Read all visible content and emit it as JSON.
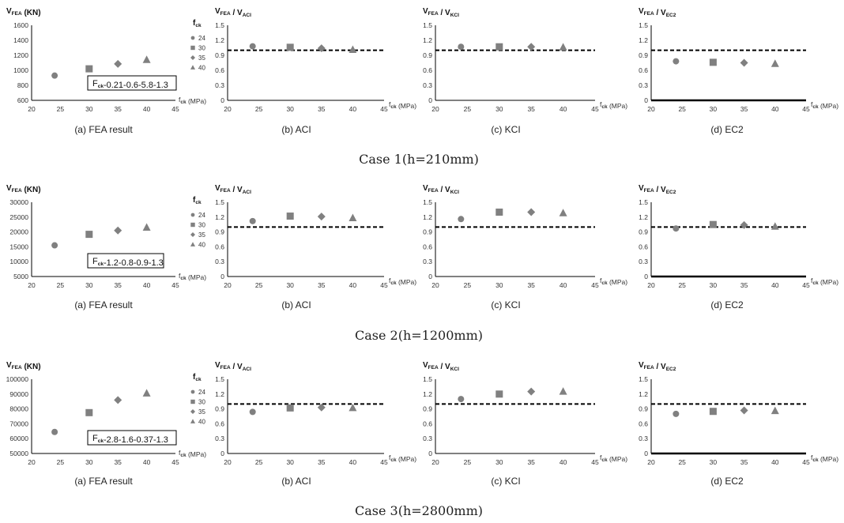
{
  "colors": {
    "marker": "#808080",
    "axis": "#000000",
    "reference": "#000000"
  },
  "legend": {
    "title_main": "f",
    "title_sub": "ck",
    "entries": [
      "24",
      "30",
      "35",
      "40"
    ]
  },
  "chart_data": [
    {
      "type": "scatter",
      "case": 1,
      "panel": "fea",
      "caption": "(a) FEA result",
      "ylabel_main": "V",
      "ylabel_sub": "FEA",
      "ylabel_rest": " (KN)",
      "xlabel_main": "f",
      "xlabel_sub": "ck",
      "xlabel_rest": " (MPa)",
      "xlim": [
        20,
        45
      ],
      "xticks": [
        "20",
        "25",
        "30",
        "35",
        "40",
        "45"
      ],
      "ylim": [
        600,
        1600
      ],
      "yticks": [
        "600",
        "800",
        "1000",
        "1200",
        "1400",
        "1600"
      ],
      "x": [
        24,
        30,
        35,
        40
      ],
      "y": [
        930,
        1020,
        1085,
        1140
      ],
      "legend_title": "f",
      "legend_title_sub": "ck",
      "annotation": {
        "prefix": "F",
        "sub": "ck",
        "text": "-0.21-0.6-5.8-1.3"
      }
    },
    {
      "type": "scatter",
      "case": 1,
      "panel": "ratio",
      "caption": "(b) ACI",
      "ylabel_main": "V",
      "ylabel_sub": "FEA",
      "ylabel_mid": " / V",
      "ylabel_sub2": "ACI",
      "xlabel_main": "f",
      "xlabel_sub": "ck",
      "xlabel_rest": " (MPa)",
      "xlim": [
        20,
        45
      ],
      "xticks": [
        "20",
        "25",
        "30",
        "35",
        "40",
        "45"
      ],
      "ylim": [
        0,
        1.5
      ],
      "yticks": [
        "0",
        "0.3",
        "0.6",
        "0.9",
        "1.2",
        "1.5"
      ],
      "x": [
        24,
        30,
        35,
        40
      ],
      "y": [
        1.08,
        1.06,
        1.04,
        1.01
      ],
      "reference": 1.0
    },
    {
      "type": "scatter",
      "case": 1,
      "panel": "ratio",
      "caption": "(c) KCI",
      "ylabel_main": "V",
      "ylabel_sub": "FEA",
      "ylabel_mid": " / V",
      "ylabel_sub2": "KCI",
      "xlabel_main": "f",
      "xlabel_sub": "ck",
      "xlabel_rest": " (MPa)",
      "xlim": [
        20,
        45
      ],
      "xticks": [
        "20",
        "25",
        "30",
        "35",
        "40",
        "45"
      ],
      "ylim": [
        0,
        1.5
      ],
      "yticks": [
        "0",
        "0.3",
        "0.6",
        "0.9",
        "1.2",
        "1.5"
      ],
      "x": [
        24,
        30,
        35,
        40
      ],
      "y": [
        1.07,
        1.07,
        1.07,
        1.06
      ],
      "reference": 1.0
    },
    {
      "type": "scatter",
      "case": 1,
      "panel": "ratio",
      "caption": "(d) EC2",
      "ylabel_main": "V",
      "ylabel_sub": "FEA",
      "ylabel_mid": " / V",
      "ylabel_sub2": "EC2",
      "xlabel_main": "f",
      "xlabel_sub": "ck",
      "xlabel_rest": " (MPa)",
      "xlim": [
        20,
        45
      ],
      "xticks": [
        "20",
        "25",
        "30",
        "35",
        "40",
        "45"
      ],
      "ylim": [
        0,
        1.5
      ],
      "yticks": [
        "0",
        "0.3",
        "0.6",
        "0.9",
        "1.2",
        "1.5"
      ],
      "x": [
        24,
        30,
        35,
        40
      ],
      "y": [
        0.78,
        0.76,
        0.75,
        0.73
      ],
      "reference": 1.0
    },
    {
      "type": "scatter",
      "case": 2,
      "panel": "fea",
      "caption": "(a) FEA result",
      "ylabel_main": "V",
      "ylabel_sub": "FEA",
      "ylabel_rest": " (KN)",
      "xlabel_main": "f",
      "xlabel_sub": "ck",
      "xlabel_rest": " (MPa)",
      "xlim": [
        20,
        45
      ],
      "xticks": [
        "20",
        "25",
        "30",
        "35",
        "40",
        "45"
      ],
      "ylim": [
        5000,
        30000
      ],
      "yticks": [
        "5000",
        "10000",
        "15000",
        "20000",
        "25000",
        "30000"
      ],
      "x": [
        24,
        30,
        35,
        40
      ],
      "y": [
        15500,
        19200,
        20500,
        21500
      ],
      "legend_title": "f",
      "legend_title_sub": "ck",
      "annotation": {
        "prefix": "F",
        "sub": "ck",
        "text": "-1.2-0.8-0.9-1.3"
      }
    },
    {
      "type": "scatter",
      "case": 2,
      "panel": "ratio",
      "caption": "(b) ACI",
      "ylabel_main": "V",
      "ylabel_sub": "FEA",
      "ylabel_mid": " / V",
      "ylabel_sub2": "ACI",
      "xlabel_main": "f",
      "xlabel_sub": "ck",
      "xlabel_rest": " (MPa)",
      "xlim": [
        20,
        45
      ],
      "xticks": [
        "20",
        "25",
        "30",
        "35",
        "40",
        "45"
      ],
      "ylim": [
        0,
        1.5
      ],
      "yticks": [
        "0",
        "0.3",
        "0.6",
        "0.9",
        "1.2",
        "1.5"
      ],
      "x": [
        24,
        30,
        35,
        40
      ],
      "y": [
        1.12,
        1.22,
        1.21,
        1.18
      ],
      "reference": 1.0
    },
    {
      "type": "scatter",
      "case": 2,
      "panel": "ratio",
      "caption": "(c) KCI",
      "ylabel_main": "V",
      "ylabel_sub": "FEA",
      "ylabel_mid": " / V",
      "ylabel_sub2": "KCI",
      "xlabel_main": "f",
      "xlabel_sub": "ck",
      "xlabel_rest": " (MPa)",
      "xlim": [
        20,
        45
      ],
      "xticks": [
        "20",
        "25",
        "30",
        "35",
        "40",
        "45"
      ],
      "ylim": [
        0,
        1.5
      ],
      "yticks": [
        "0",
        "0.3",
        "0.6",
        "0.9",
        "1.2",
        "1.5"
      ],
      "x": [
        24,
        30,
        35,
        40
      ],
      "y": [
        1.16,
        1.3,
        1.3,
        1.28
      ],
      "reference": 1.0
    },
    {
      "type": "scatter",
      "case": 2,
      "panel": "ratio",
      "caption": "(d) EC2",
      "ylabel_main": "V",
      "ylabel_sub": "FEA",
      "ylabel_mid": " / V",
      "ylabel_sub2": "EC2",
      "xlabel_main": "f",
      "xlabel_sub": "ck",
      "xlabel_rest": " (MPa)",
      "xlim": [
        20,
        45
      ],
      "xticks": [
        "20",
        "25",
        "30",
        "35",
        "40",
        "45"
      ],
      "ylim": [
        0,
        1.5
      ],
      "yticks": [
        "0",
        "0.3",
        "0.6",
        "0.9",
        "1.2",
        "1.5"
      ],
      "x": [
        24,
        30,
        35,
        40
      ],
      "y": [
        0.97,
        1.05,
        1.04,
        1.01
      ],
      "reference": 1.0
    },
    {
      "type": "scatter",
      "case": 3,
      "panel": "fea",
      "caption": "(a) FEA result",
      "ylabel_main": "V",
      "ylabel_sub": "FEA",
      "ylabel_rest": " (KN)",
      "xlabel_main": "f",
      "xlabel_sub": "ck",
      "xlabel_rest": " (MPa)",
      "xlim": [
        20,
        45
      ],
      "xticks": [
        "20",
        "25",
        "30",
        "35",
        "40",
        "45"
      ],
      "ylim": [
        50000,
        100000
      ],
      "yticks": [
        "50000",
        "60000",
        "70000",
        "80000",
        "90000",
        "100000"
      ],
      "x": [
        24,
        30,
        35,
        40
      ],
      "y": [
        64500,
        77500,
        86000,
        90500
      ],
      "legend_title": "f",
      "legend_title_sub": "ck",
      "annotation": {
        "prefix": "F",
        "sub": "ck",
        "text": "-2.8-1.6-0.37-1.3"
      }
    },
    {
      "type": "scatter",
      "case": 3,
      "panel": "ratio",
      "caption": "(b) ACI",
      "ylabel_main": "V",
      "ylabel_sub": "FEA",
      "ylabel_mid": " / V",
      "ylabel_sub2": "ACI",
      "xlabel_main": "f",
      "xlabel_sub": "ck",
      "xlabel_rest": " (MPa)",
      "xlim": [
        20,
        45
      ],
      "xticks": [
        "20",
        "25",
        "30",
        "35",
        "40",
        "45"
      ],
      "ylim": [
        0,
        1.5
      ],
      "yticks": [
        "0",
        "0.3",
        "0.6",
        "0.9",
        "1.2",
        "1.5"
      ],
      "x": [
        24,
        30,
        35,
        40
      ],
      "y": [
        0.84,
        0.92,
        0.93,
        0.92
      ],
      "reference": 1.0
    },
    {
      "type": "scatter",
      "case": 3,
      "panel": "ratio",
      "caption": "(c) KCI",
      "ylabel_main": "V",
      "ylabel_sub": "FEA",
      "ylabel_mid": " / V",
      "ylabel_sub2": "KCI",
      "xlabel_main": "f",
      "xlabel_sub": "ck",
      "xlabel_rest": " (MPa)",
      "xlim": [
        20,
        45
      ],
      "xticks": [
        "20",
        "25",
        "30",
        "35",
        "40",
        "45"
      ],
      "ylim": [
        0,
        1.5
      ],
      "yticks": [
        "0",
        "0.3",
        "0.6",
        "0.9",
        "1.2",
        "1.5"
      ],
      "x": [
        24,
        30,
        35,
        40
      ],
      "y": [
        1.1,
        1.2,
        1.25,
        1.25
      ],
      "reference": 1.0
    },
    {
      "type": "scatter",
      "case": 3,
      "panel": "ratio",
      "caption": "(d) EC2",
      "ylabel_main": "V",
      "ylabel_sub": "FEA",
      "ylabel_mid": " / V",
      "ylabel_sub2": "EC2",
      "xlabel_main": "f",
      "xlabel_sub": "ck",
      "xlabel_rest": " (MPa)",
      "xlim": [
        20,
        45
      ],
      "xticks": [
        "20",
        "25",
        "30",
        "35",
        "40",
        "45"
      ],
      "ylim": [
        0,
        1.5
      ],
      "yticks": [
        "0",
        "0.3",
        "0.6",
        "0.9",
        "1.2",
        "1.5"
      ],
      "x": [
        24,
        30,
        35,
        40
      ],
      "y": [
        0.8,
        0.85,
        0.87,
        0.86
      ],
      "reference": 1.0
    }
  ],
  "case_titles": [
    "Case  1(h=210mm)",
    "Case  2(h=1200mm)",
    "Case  3(h=2800mm)"
  ]
}
